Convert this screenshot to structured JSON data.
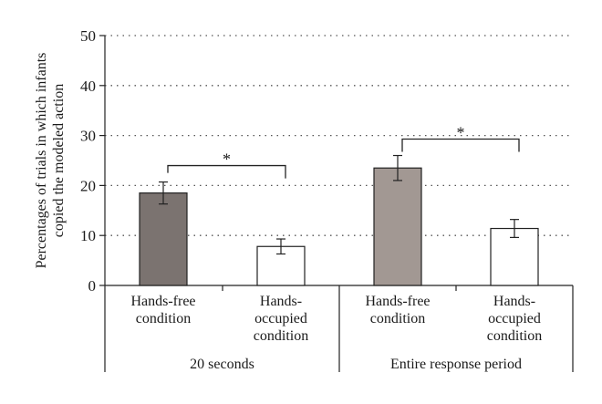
{
  "chart_data": {
    "type": "bar",
    "ylabel_lines": [
      "Percentages of trials in which infants",
      "copied the modeled action"
    ],
    "ylim": [
      0,
      50
    ],
    "yticks": [
      0,
      10,
      20,
      30,
      40,
      50
    ],
    "grid": "dotted-horizontal",
    "groups": [
      {
        "label": "20 seconds",
        "bars": [
          {
            "category_lines": [
              "Hands-free",
              "condition"
            ],
            "value": 18.5,
            "error": 2.2,
            "color": "#7b7370"
          },
          {
            "category_lines": [
              "Hands-",
              "occupied",
              "condition"
            ],
            "value": 7.8,
            "error": 1.5,
            "color": "#ffffff"
          }
        ],
        "significance": "*"
      },
      {
        "label": "Entire response period",
        "bars": [
          {
            "category_lines": [
              "Hands-free",
              "condition"
            ],
            "value": 23.5,
            "error": 2.5,
            "color": "#a29893"
          },
          {
            "category_lines": [
              "Hands-",
              "occupied",
              "condition"
            ],
            "value": 11.4,
            "error": 1.8,
            "color": "#ffffff"
          }
        ],
        "significance": "*"
      }
    ]
  }
}
